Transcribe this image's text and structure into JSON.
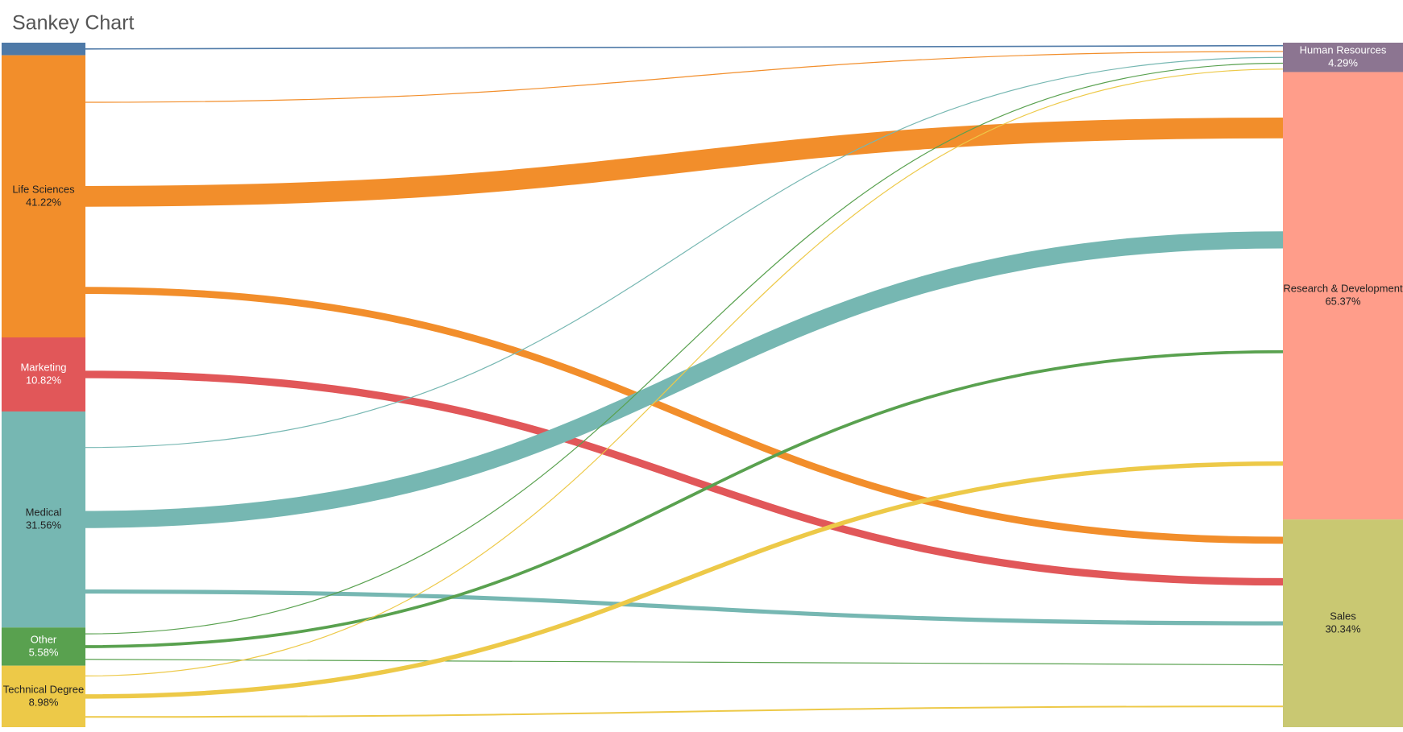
{
  "chart_data": {
    "type": "sankey",
    "title": "Sankey Chart",
    "sources": {
      "names": [
        null,
        "Life Sciences",
        "Marketing",
        "Medical",
        "Other",
        "Technical Degree"
      ],
      "values": [
        1.84,
        41.22,
        10.82,
        31.56,
        5.58,
        8.98
      ],
      "value_labels": [
        null,
        "41.22%",
        "10.82%",
        "31.56%",
        "5.58%",
        "8.98%"
      ],
      "colors": [
        "#4e79a7",
        "#f28e2b",
        "#e15759",
        "#76b7b2",
        "#59a14f",
        "#edc948"
      ]
    },
    "targets": {
      "names": [
        "Human Resources",
        "Research & Development",
        "Sales"
      ],
      "values": [
        4.29,
        65.37,
        30.34
      ],
      "value_labels": [
        "4.29%",
        "65.37%",
        "30.34%"
      ],
      "colors": [
        "#8c7591",
        "#ff9d8a",
        "#c9c872"
      ]
    },
    "flows": [
      [
        1.84,
        0,
        0
      ],
      [
        1.09,
        29.93,
        10.2
      ],
      [
        0,
        0,
        10.82
      ],
      [
        0.88,
        24.69,
        5.99
      ],
      [
        0.2,
        4.35,
        1.02
      ],
      [
        0.27,
        6.39,
        2.31
      ]
    ]
  }
}
